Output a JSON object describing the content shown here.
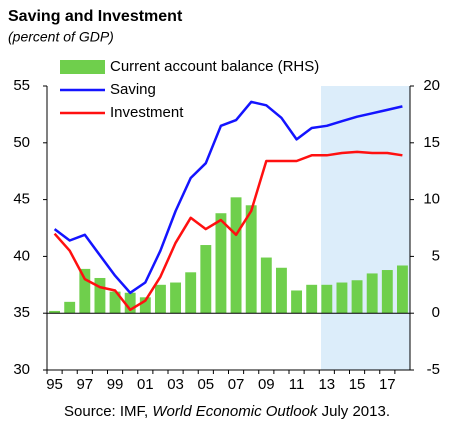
{
  "chart_data": {
    "type": "bar-line",
    "title": "Saving and Investment",
    "subtitle": "(percent of GDP)",
    "source": {
      "prefix": "Source: IMF, ",
      "title": "World Economic Outlook",
      "suffix": " July 2013."
    },
    "categories": [
      "95",
      null,
      "97",
      null,
      "99",
      null,
      "01",
      null,
      "03",
      null,
      "05",
      null,
      "07",
      null,
      "09",
      null,
      "11",
      null,
      "13",
      null,
      "15",
      null,
      "17",
      null
    ],
    "series": [
      {
        "name": "Current account balance (RHS)",
        "type": "bar",
        "axis": "y2",
        "color": "#6fcf4c",
        "values": [
          0.2,
          1.0,
          3.9,
          3.1,
          1.9,
          1.8,
          1.4,
          2.5,
          2.7,
          3.6,
          6.0,
          8.8,
          10.2,
          9.5,
          4.9,
          4.0,
          2.0,
          2.5,
          2.5,
          2.7,
          2.9,
          3.5,
          3.8,
          4.2
        ]
      },
      {
        "name": "Saving",
        "type": "line",
        "color": "#1414ff",
        "values": [
          42.4,
          41.4,
          41.9,
          40.1,
          38.3,
          36.8,
          37.7,
          40.5,
          44.0,
          46.9,
          48.2,
          51.5,
          52.0,
          53.6,
          53.3,
          52.2,
          50.3,
          51.3,
          51.5,
          51.9,
          52.3,
          52.6,
          52.9,
          53.2
        ]
      },
      {
        "name": "Investment",
        "type": "line",
        "color": "#ff1010",
        "values": [
          42.0,
          40.5,
          38.0,
          37.3,
          37.0,
          35.3,
          36.1,
          38.2,
          41.2,
          43.4,
          42.4,
          43.2,
          41.9,
          44.0,
          48.4,
          48.4,
          48.4,
          48.9,
          48.9,
          49.1,
          49.2,
          49.1,
          49.1,
          48.9
        ]
      }
    ],
    "ylim": [
      30,
      55
    ],
    "yticks": [
      30,
      35,
      40,
      45,
      50,
      55
    ],
    "y2lim": [
      -5,
      20
    ],
    "y2ticks": [
      -5,
      0,
      5,
      10,
      15,
      20
    ],
    "legend": "upper-left"
  }
}
